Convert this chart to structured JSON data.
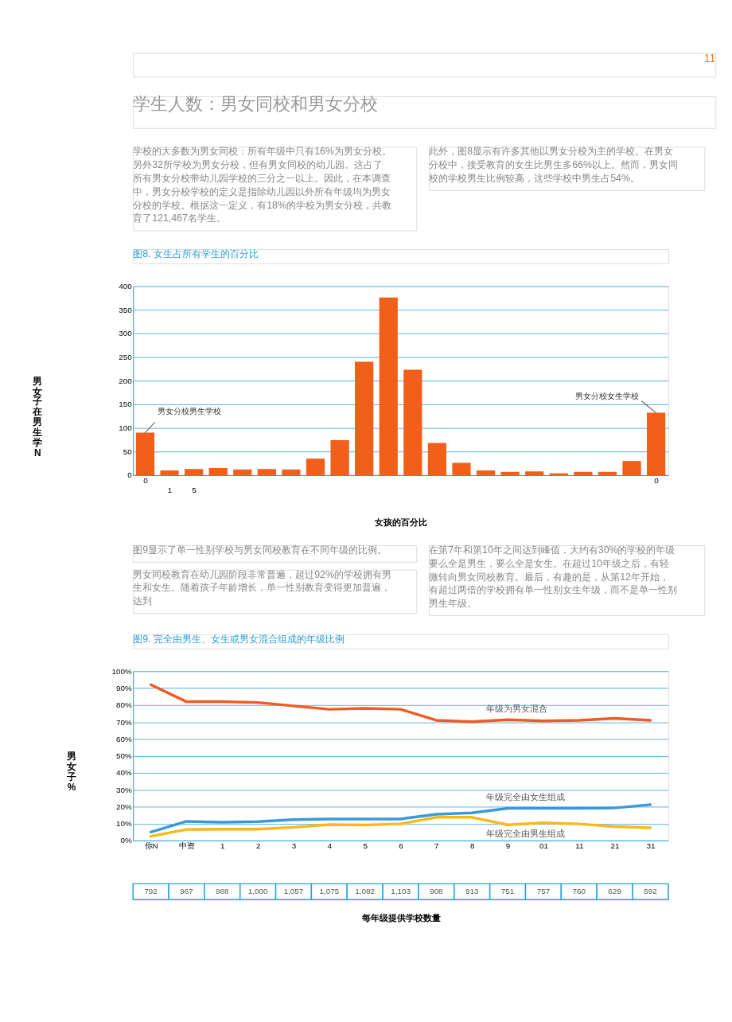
{
  "chart_data": [
    {
      "type": "bar",
      "title": "图8. 女生占所有学生的百分比",
      "xlabel": "女孩的百分比",
      "ylabel": "男女子在男生学N",
      "categories": [
        "0",
        "1",
        "5",
        null,
        null,
        null,
        null,
        null,
        null,
        null,
        null,
        null,
        null,
        null,
        null,
        null,
        null,
        null,
        null,
        null,
        null,
        "0"
      ],
      "values": [
        90,
        10,
        13,
        15,
        12,
        13,
        12,
        35,
        74,
        240,
        376,
        223,
        68,
        26,
        10,
        7,
        8,
        4,
        7,
        7,
        30,
        132
      ],
      "color": "#f15f1a",
      "ylim": [
        0,
        400
      ],
      "yticks": [
        0,
        50,
        100,
        150,
        200,
        250,
        300,
        350,
        400
      ],
      "grid": "y",
      "annotations": [
        "11",
        "学生人数：男女同校和男女分校",
        "学校的大多数为男女同校：所有年级中只有16%为男女分校。另外32所学校为男女分校，但有男女同校的幼儿园。这占了所有男女分校带幼儿园学校的三分之一以上。因此，在本调查中，男女分校学校的定义是指除幼儿园以外所有年级均为男女分校的学校。根据这一定义，有18%的学校为男女分校，共教育了121,467名学生。",
        "此外，图8显示有许多其他以男女分校为主的学校。在男女分校中，接受教育的女生比男生多66%以上。然而，男女同校的学校男生比例较高，这些学校中男生占54%。",
        {
          "text": "男女分校男生学校",
          "x": "0",
          "y": 90
        },
        "男女分校女生学校"
      ]
    },
    {
      "type": "line",
      "title": "图9. 完全由男生、女生或男女混合组成的年级比例",
      "xlabel": "每年级提供学校数量",
      "ylabel": "男女子%",
      "categories": [
        "你N",
        "中资",
        "1",
        "2",
        "3",
        "4",
        "5",
        "6",
        "7",
        "8",
        "9",
        "01",
        "11",
        "21",
        "31"
      ],
      "series": [
        {
          "name": "年级为男女混合",
          "color": "#f15a22",
          "values": [
            92,
            82,
            82,
            81.5,
            79.5,
            77.5,
            78,
            77.5,
            71,
            70.2,
            71.3,
            70.6,
            71,
            72.2,
            71
          ]
        },
        {
          "name": "年级完全由女生组成",
          "color": "#3a9ad9",
          "values": [
            5,
            11.3,
            10.8,
            11.2,
            12.3,
            12.7,
            12.7,
            12.7,
            15.5,
            16.3,
            19,
            19,
            19,
            19.2,
            21.2
          ]
        },
        {
          "name": "年级完全由男生组成",
          "color": "#fbb917",
          "values": [
            2.5,
            6.5,
            6.7,
            6.7,
            7.8,
            9.4,
            9.2,
            9.8,
            13.7,
            13.7,
            9.3,
            10.5,
            9.8,
            8.2,
            7.5
          ]
        }
      ],
      "ylim": [
        0,
        100
      ],
      "yticks": [
        {
          "value": 0,
          "label": "0%"
        },
        {
          "value": 10,
          "label": "10%"
        },
        {
          "value": 20,
          "label": "20%"
        },
        {
          "value": 30,
          "label": "30%"
        },
        {
          "value": 40,
          "label": "40%"
        },
        {
          "value": 50,
          "label": "50%"
        },
        {
          "value": 60,
          "label": "60%"
        },
        {
          "value": 70,
          "label": "70%"
        },
        {
          "value": 80,
          "label": "80%"
        },
        {
          "value": 90,
          "label": "90%"
        },
        {
          "value": 100,
          "label": "100%"
        }
      ],
      "grid": "y",
      "legend": false,
      "annotations": [
        "图9显示了单一性别学校与男女同校教育在不同年级的比例。",
        "男女同校教育在幼儿园阶段非常普遍，超过92%的学校拥有男生和女生。随着孩子年龄增长，单一性别教育变得更加普遍，达到",
        "在第7年和第10年之间达到峰值，大约有30%的学校的年级要么全是男生，要么全是女生。在超过10年级之后，有轻微转向男女同校教育。最后，有趣的是，从第12年开始，有超过两倍的学校拥有单一性别女生年级，而不是单一性别男生年级。",
        "792",
        "967",
        "988",
        "1,000",
        "1,057",
        "1,075",
        "1,082",
        "1,103",
        "908",
        "913",
        "751",
        "757",
        "760",
        "629",
        "592"
      ]
    }
  ]
}
